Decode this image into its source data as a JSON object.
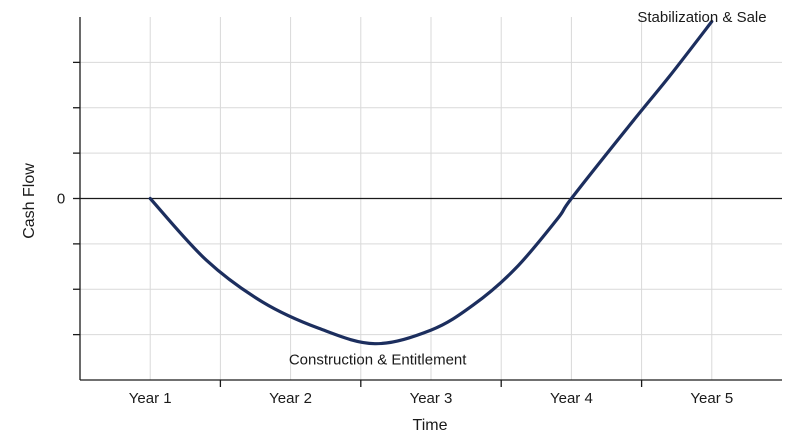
{
  "chart_data": {
    "type": "line",
    "title": "",
    "xlabel": "Time",
    "ylabel": "Cash Flow",
    "categories": [
      "Year 1",
      "Year 2",
      "Year 3",
      "Year 4",
      "Year 5"
    ],
    "x_range": [
      0.5,
      5.5
    ],
    "y_range": [
      -4,
      4
    ],
    "y_tick_values": [
      -3,
      -2,
      -1,
      0,
      1,
      2,
      3
    ],
    "y_tick_labels": {
      "0": "0"
    },
    "grid": true,
    "legend": "none",
    "series": [
      {
        "color": "#1c2e5e",
        "x": [
          1.0,
          1.4,
          1.8,
          2.2,
          2.6,
          3.0,
          3.3,
          3.6,
          3.9,
          4.0,
          4.4,
          4.7,
          5.0
        ],
        "y": [
          0.0,
          -1.36,
          -2.28,
          -2.86,
          -3.2,
          -2.9,
          -2.35,
          -1.55,
          -0.45,
          0.0,
          1.56,
          2.7,
          3.9
        ]
      }
    ],
    "annotations": [
      {
        "text": "Stabilization & Sale",
        "x": 4.93,
        "y": 4.0
      },
      {
        "text": "Construction & Entitlement",
        "x": 2.62,
        "y": -3.55
      }
    ]
  },
  "colors": {
    "line": "#1c2e5e",
    "grid": "#d9d9d9",
    "axis": "#1a1a1a",
    "zero_line": "#1a1a1a"
  }
}
